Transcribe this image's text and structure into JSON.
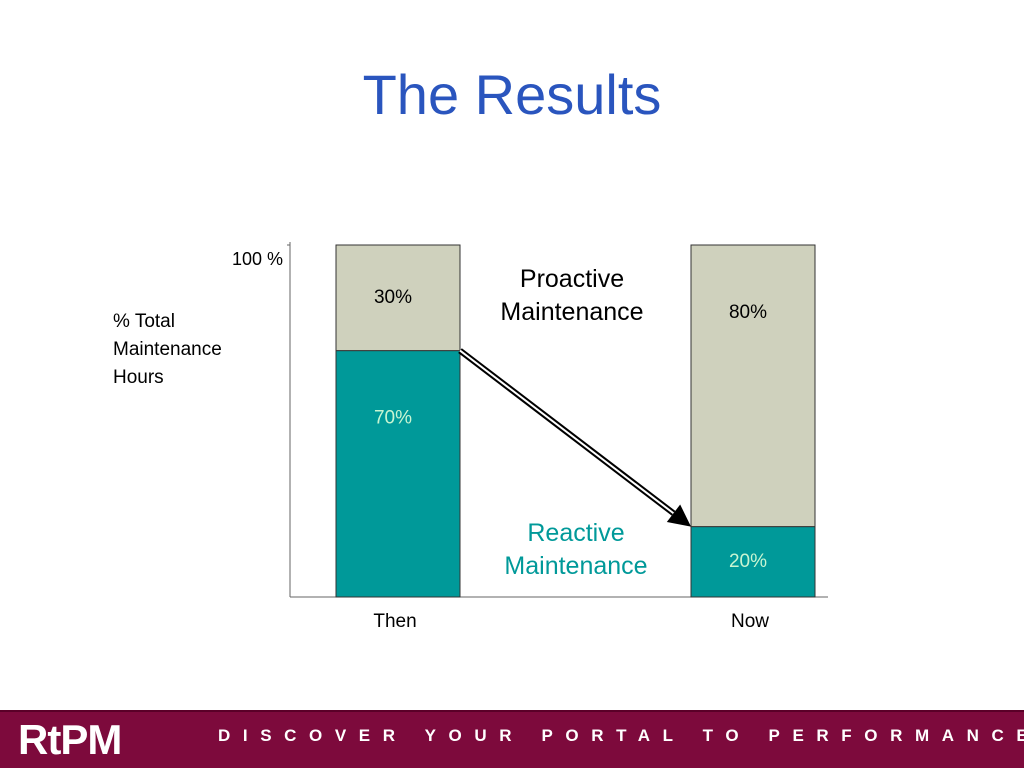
{
  "chart_data": {
    "type": "bar",
    "stacked": true,
    "title": "The Results",
    "y_label": "% Total Maintenance Hours",
    "categories": [
      "Then",
      "Now"
    ],
    "series": [
      {
        "name": "Reactive Maintenance",
        "color": "#009999",
        "label_color": "#c8f5d2",
        "values": [
          70,
          20
        ],
        "value_labels": [
          "70%",
          "20%"
        ]
      },
      {
        "name": "Proactive Maintenance",
        "color": "#cfd1bd",
        "label_color": "#000000",
        "values": [
          30,
          80
        ],
        "value_labels": [
          "30%",
          "80%"
        ]
      }
    ],
    "ylim": [
      0,
      100
    ],
    "yticks": [
      {
        "value": 100,
        "label": "100 %"
      }
    ]
  },
  "footer": {
    "logo": "RtPM",
    "tagline": "DISCOVER YOUR PORTAL TO PERFORMANCE"
  }
}
